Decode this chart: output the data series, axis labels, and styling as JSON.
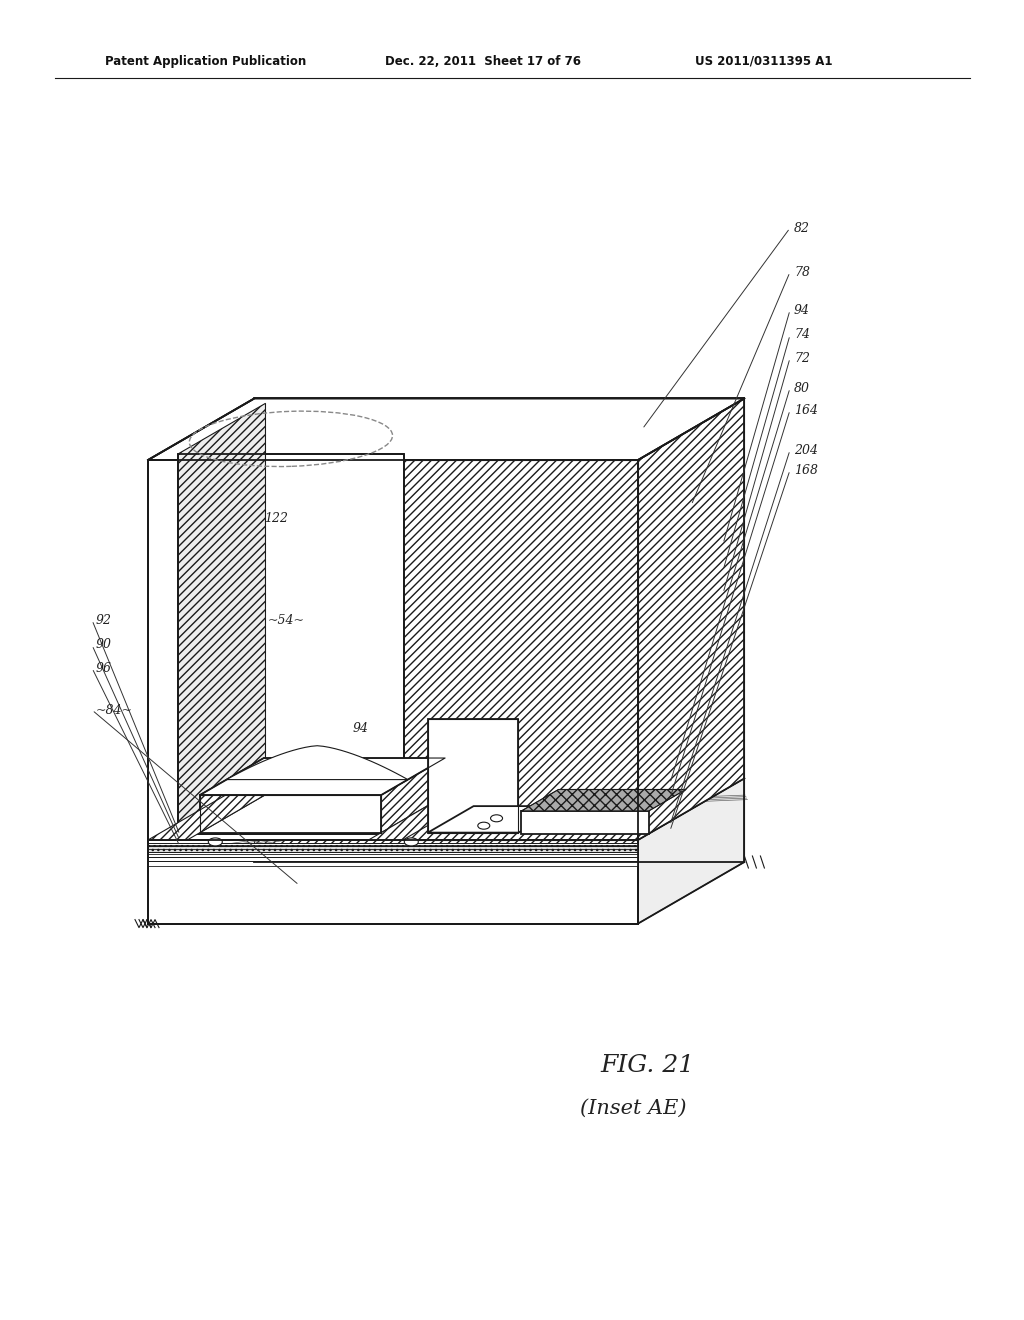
{
  "title_line1": "Patent Application Publication",
  "title_line2": "Dec. 22, 2011  Sheet 17 of 76",
  "title_line3": "US 2011/0311395 A1",
  "fig_label": "FIG. 21",
  "fig_sublabel": "(Inset AE)",
  "bg_color": "#ffffff",
  "lc": "#1a1a1a",
  "hatch_lw": 0.5
}
